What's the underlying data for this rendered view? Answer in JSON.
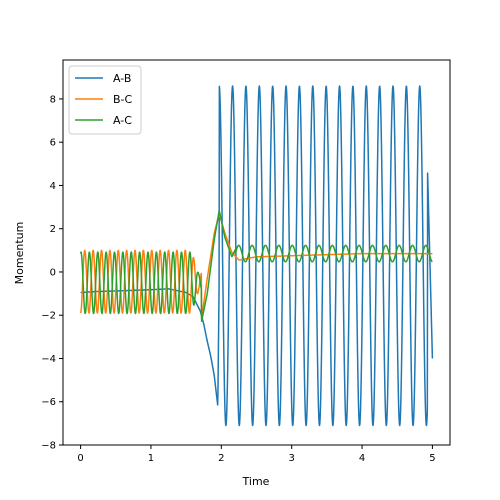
{
  "chart_data": {
    "type": "line",
    "title": "",
    "xlabel": "Time",
    "ylabel": "Momentum",
    "xlim": [
      -0.25,
      5.25
    ],
    "ylim": [
      -8,
      9.8
    ],
    "xticks": [
      0,
      1,
      2,
      3,
      4,
      5
    ],
    "yticks": [
      -8,
      -6,
      -4,
      -2,
      0,
      2,
      4,
      6,
      8
    ],
    "grid": false,
    "legend_position": "top-left",
    "colors": {
      "A-B": "#1f77b4",
      "B-C": "#ff7f0e",
      "A-C": "#2ca02c"
    },
    "series": [
      {
        "name": "A-B",
        "x": [
          0,
          0.25,
          0.5,
          0.75,
          1.0,
          1.25,
          1.5,
          1.6,
          1.7,
          1.75,
          1.8,
          1.85,
          1.9,
          1.95,
          2.0,
          2.1,
          2.25,
          2.4,
          2.6,
          2.8,
          3.0,
          3.2,
          3.4,
          3.6,
          3.8,
          4.0,
          4.2,
          4.4,
          4.6,
          4.8,
          4.9,
          5.0
        ],
        "y": [
          -0.95,
          -0.9,
          -0.88,
          -0.85,
          -0.82,
          -0.78,
          -0.95,
          -1.15,
          -1.8,
          -2.4,
          -3.2,
          -3.9,
          -4.8,
          -6.2,
          9.0,
          -7.0,
          8.6,
          -7.1,
          8.5,
          -7.2,
          8.6,
          -7.1,
          8.5,
          -7.1,
          8.6,
          -7.0,
          8.6,
          -7.0,
          8.6,
          -7.0,
          8.6,
          -4.0
        ],
        "oscillation": {
          "start": 1.97,
          "end": 5.0,
          "period": 0.19,
          "center": 0.75,
          "amplitude": 7.85
        }
      },
      {
        "name": "B-C",
        "x": [
          0,
          0.1,
          0.2,
          0.5,
          1.0,
          1.5,
          1.6,
          1.7,
          1.8,
          1.9,
          1.97,
          2.05,
          2.15,
          2.25,
          2.5,
          3.0,
          3.5,
          4.0,
          4.5,
          5.0
        ],
        "y": [
          -1.9,
          1.0,
          -1.9,
          1.0,
          1.0,
          1.0,
          -1.2,
          -2.6,
          -0.3,
          1.8,
          2.7,
          1.8,
          0.9,
          0.55,
          0.7,
          0.75,
          0.8,
          0.85,
          0.85,
          0.85
        ],
        "oscillation": {
          "start": 0.0,
          "end": 1.72,
          "period": 0.119,
          "center": -0.45,
          "amplitude": 1.45
        }
      },
      {
        "name": "A-C",
        "x": [
          0,
          0.1,
          0.2,
          0.5,
          1.0,
          1.5,
          1.6,
          1.7,
          1.8,
          1.9,
          1.97,
          2.05,
          2.15,
          2.25,
          2.5,
          3.0,
          3.5,
          4.0,
          4.5,
          5.0
        ],
        "y": [
          0.0,
          -1.9,
          0.9,
          -1.9,
          0.9,
          -1.9,
          0.6,
          -2.6,
          -1.0,
          1.5,
          2.85,
          1.6,
          0.7,
          1.4,
          0.4,
          1.2,
          0.5,
          1.2,
          0.5,
          0.9
        ],
        "oscillation": {
          "start": 0.0,
          "end": 1.72,
          "period": 0.119,
          "center": -0.5,
          "amplitude": 1.42
        }
      }
    ]
  }
}
